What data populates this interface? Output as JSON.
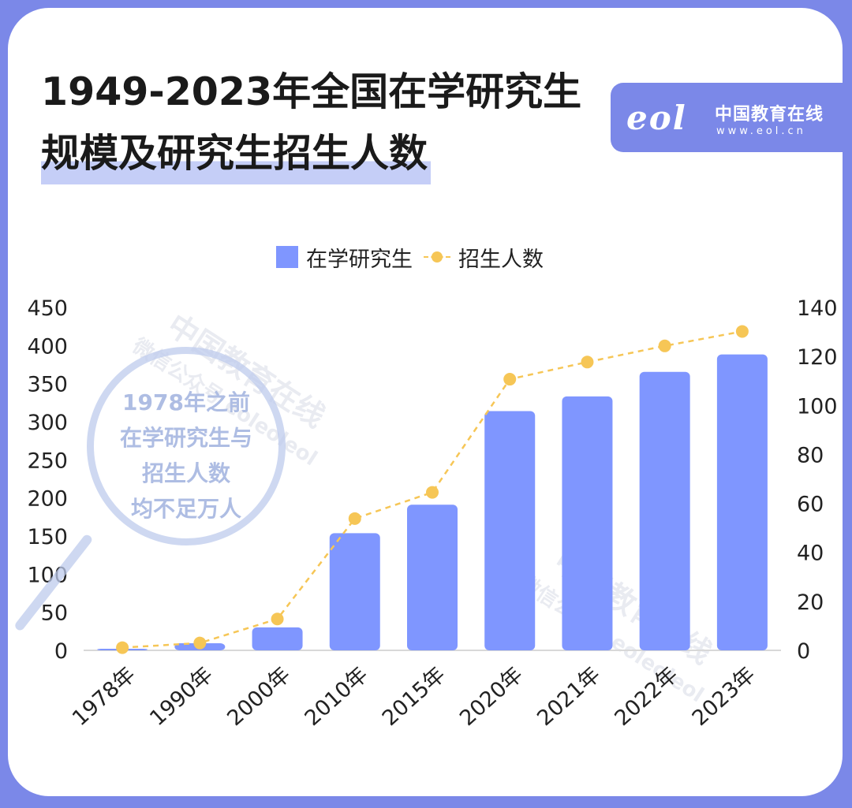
{
  "title_line1": "1949-2023年全国在学研究生",
  "title_line2": "规模及研究生招生人数",
  "brand": {
    "logo": "eol",
    "name": "中国教育在线",
    "url": "www.eol.cn"
  },
  "watermarks": [
    "中国教育在线",
    "微信公众号 eoleoleol"
  ],
  "callout": [
    "1978年之前",
    "在学研究生与",
    "招生人数",
    "均不足万人"
  ],
  "colors": {
    "bar": "#7f96ff",
    "line": "#f6c656",
    "brand": "#7b88e8"
  },
  "chart_data": {
    "type": "bar",
    "categories": [
      "1978年",
      "1990年",
      "2000年",
      "2010年",
      "2015年",
      "2020年",
      "2021年",
      "2022年",
      "2023年"
    ],
    "series": [
      {
        "name": "在学研究生",
        "type": "bar",
        "axis": "left",
        "values": [
          1.1,
          9.3,
          30.1,
          153.8,
          191.1,
          314,
          333.2,
          365.4,
          388.3
        ]
      },
      {
        "name": "招生人数",
        "type": "line",
        "axis": "right",
        "values": [
          1.1,
          3,
          12.8,
          53.8,
          64.5,
          110.7,
          117.7,
          124.3,
          130.2
        ]
      }
    ],
    "y_left": {
      "min": 0,
      "max": 450,
      "ticks": [
        0,
        50,
        100,
        150,
        200,
        250,
        300,
        350,
        400,
        450
      ]
    },
    "y_right": {
      "min": 0,
      "max": 140,
      "ticks": [
        0,
        20,
        40,
        60,
        80,
        100,
        120,
        140
      ]
    },
    "grid": false,
    "legend": "top-center"
  }
}
